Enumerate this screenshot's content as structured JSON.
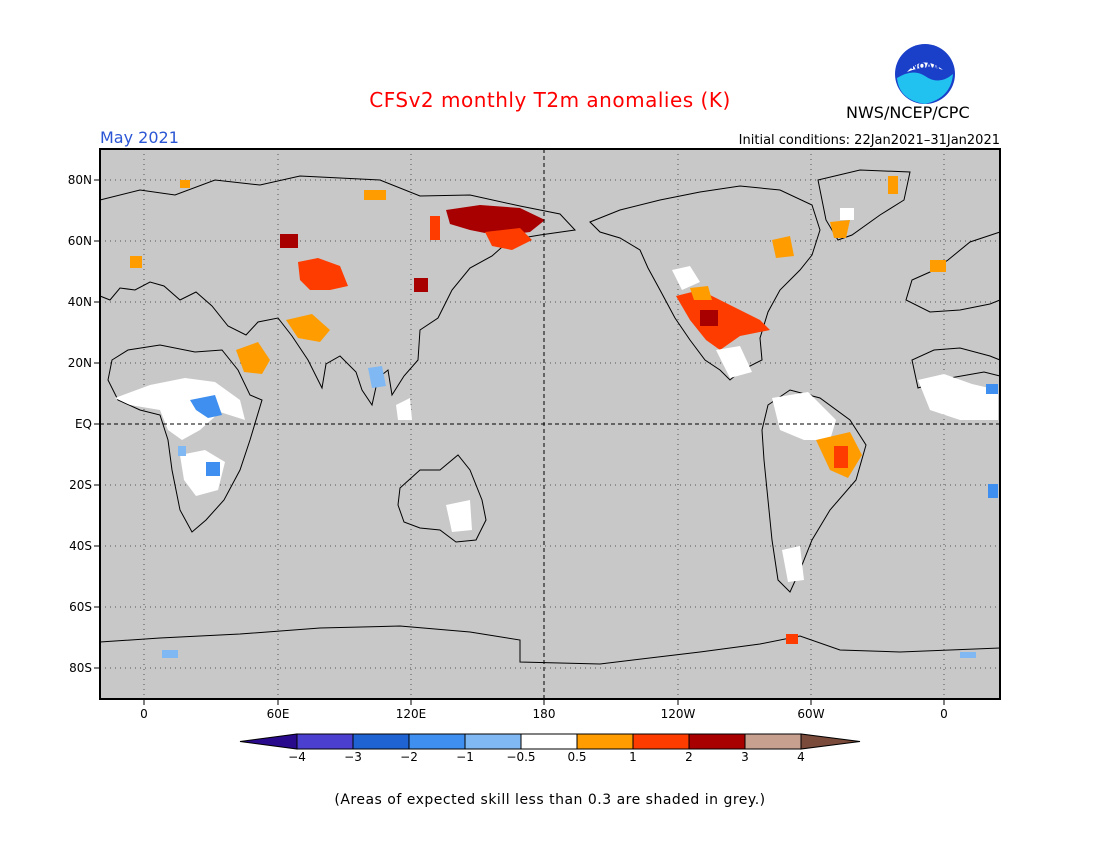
{
  "header": {
    "title": "CFSv2 monthly T2m anomalies (K)",
    "title_color": "#ff0000",
    "agency": "NWS/NCEP/CPC",
    "logo_text": "NOAA",
    "period": "May 2021",
    "period_color": "#2a55d4",
    "initial_conditions": "Initial conditions: 22Jan2021–31Jan2021"
  },
  "map": {
    "background_color": "#c8c8c8",
    "projection": "equirectangular, centered at 180",
    "lat_labels": [
      "80N",
      "60N",
      "40N",
      "20N",
      "EQ",
      "20S",
      "40S",
      "60S",
      "80S"
    ],
    "lon_labels": [
      "0",
      "60E",
      "120E",
      "180",
      "120W",
      "60W",
      "0"
    ],
    "grid": "dotted"
  },
  "legend": {
    "colors": [
      "#2a0a8c",
      "#4b3fcf",
      "#1f63d2",
      "#3f8ff0",
      "#7fb8f2",
      "#ffffff",
      "#ff9c00",
      "#ff3c00",
      "#a80000",
      "#c8a090",
      "#7a4a3a"
    ],
    "tick_labels": [
      "−4",
      "−3",
      "−2",
      "−1",
      "−0.5",
      "0.5",
      "1",
      "2",
      "3",
      "4"
    ],
    "units": "K"
  },
  "footnote": "(Areas of expected skill less than 0.3 are shaded in grey.)"
}
